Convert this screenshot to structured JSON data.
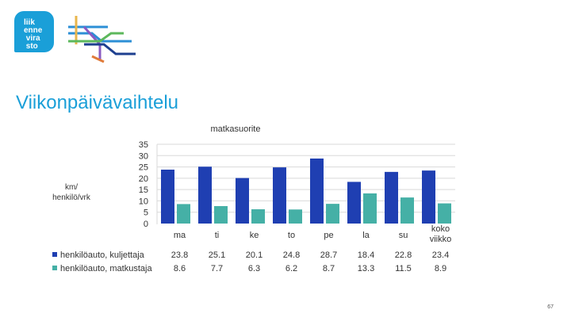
{
  "logo": {
    "text": "liik enne vira sto"
  },
  "page": {
    "title": "Viikonpäivävaihtelu",
    "page_number": "67"
  },
  "chart_data": {
    "type": "bar",
    "title": "matkasuorite",
    "ylabel": "km/ henkilö/vrk",
    "ylim": [
      0,
      35
    ],
    "yticks": [
      0,
      5,
      10,
      15,
      20,
      25,
      30,
      35
    ],
    "categories": [
      "ma",
      "ti",
      "ke",
      "to",
      "pe",
      "la",
      "su",
      "koko viikko"
    ],
    "series": [
      {
        "name": "henkilöauto, kuljettaja",
        "color": "#1f3fb2",
        "values": [
          23.8,
          25.1,
          20.1,
          24.8,
          28.7,
          18.4,
          22.8,
          23.4
        ]
      },
      {
        "name": "henkilöauto, matkustaja",
        "color": "#45b0a6",
        "values": [
          8.6,
          7.7,
          6.3,
          6.2,
          8.7,
          13.3,
          11.5,
          8.9
        ]
      }
    ],
    "grid": true,
    "legend": "table-bottom-left"
  },
  "colors": {
    "accent": "#1a9fd8"
  }
}
